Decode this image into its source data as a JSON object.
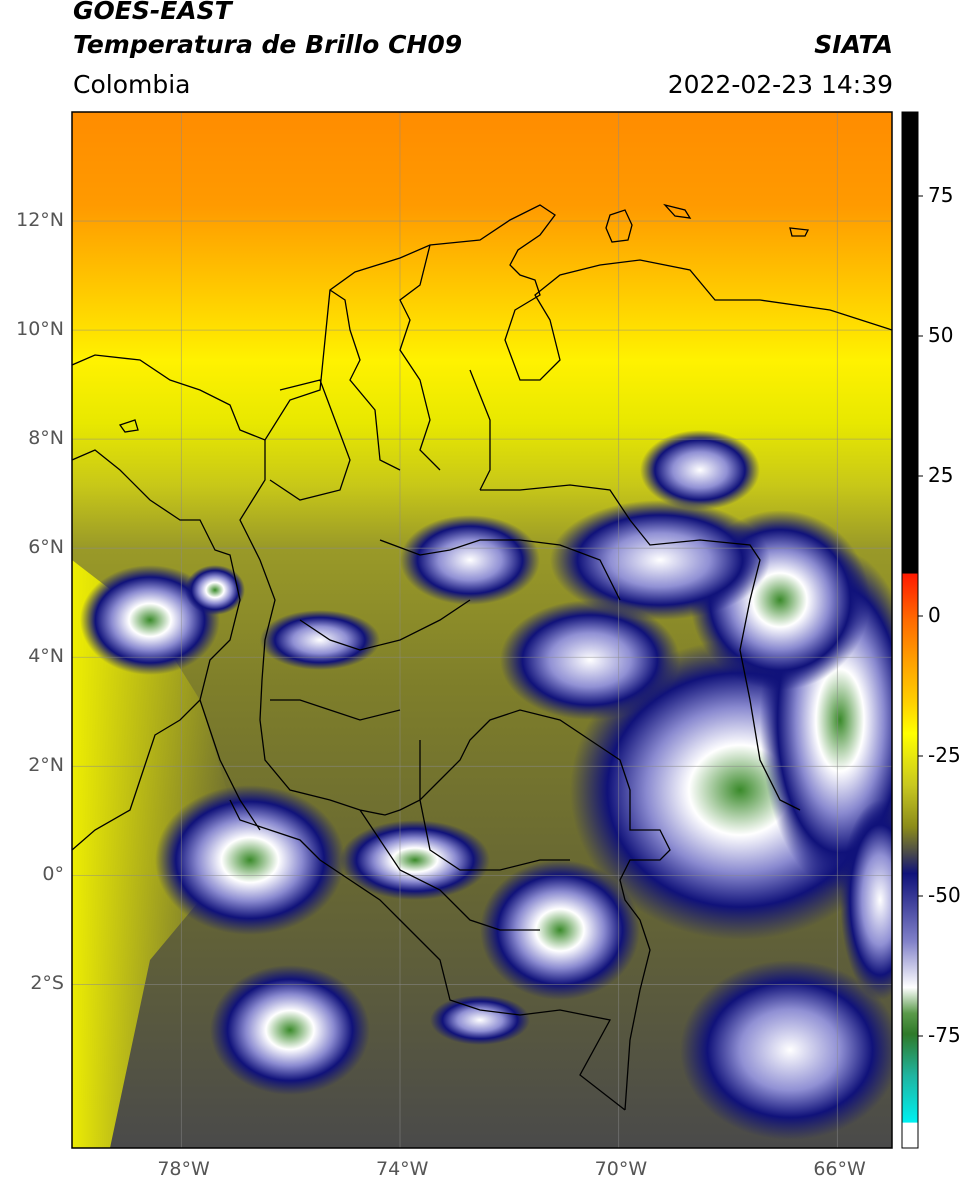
{
  "header": {
    "satellite": "GOES-EAST",
    "product": "Temperatura de Brillo CH09",
    "region": "Colombia",
    "agency": "SIATA",
    "datetime": "2022-02-23 14:39"
  },
  "map": {
    "lon_range": [
      -80,
      -65
    ],
    "lat_range": [
      -5,
      14
    ],
    "lon_ticks": [
      {
        "value": -78,
        "label": "78°W"
      },
      {
        "value": -74,
        "label": "74°W"
      },
      {
        "value": -70,
        "label": "70°W"
      },
      {
        "value": -66,
        "label": "66°W"
      }
    ],
    "lat_ticks": [
      {
        "value": 12,
        "label": "12°N"
      },
      {
        "value": 10,
        "label": "10°N"
      },
      {
        "value": 8,
        "label": "8°N"
      },
      {
        "value": 6,
        "label": "6°N"
      },
      {
        "value": 4,
        "label": "4°N"
      },
      {
        "value": 2,
        "label": "2°N"
      },
      {
        "value": 0,
        "label": "0°"
      },
      {
        "value": -2,
        "label": "2°S"
      }
    ],
    "gridlines": true
  },
  "colorbar": {
    "range": [
      -95,
      90
    ],
    "ticks": [
      {
        "value": 75,
        "label": "75"
      },
      {
        "value": 50,
        "label": "50"
      },
      {
        "value": 25,
        "label": "25"
      },
      {
        "value": 0,
        "label": "0"
      },
      {
        "value": -25,
        "label": "-25"
      },
      {
        "value": -50,
        "label": "-50"
      },
      {
        "value": -75,
        "label": "-75"
      }
    ],
    "colors": {
      "black": "#000000",
      "red": "#ff1a00",
      "orange": "#ff9a00",
      "yellow": "#ffff00",
      "olive": "#8c8c1a",
      "gray": "#4a4a4a",
      "navy": "#10127a",
      "white": "#ffffff",
      "green": "#3a8a2a",
      "teal": "#20c4b4",
      "cyan": "#00f0f0"
    }
  }
}
